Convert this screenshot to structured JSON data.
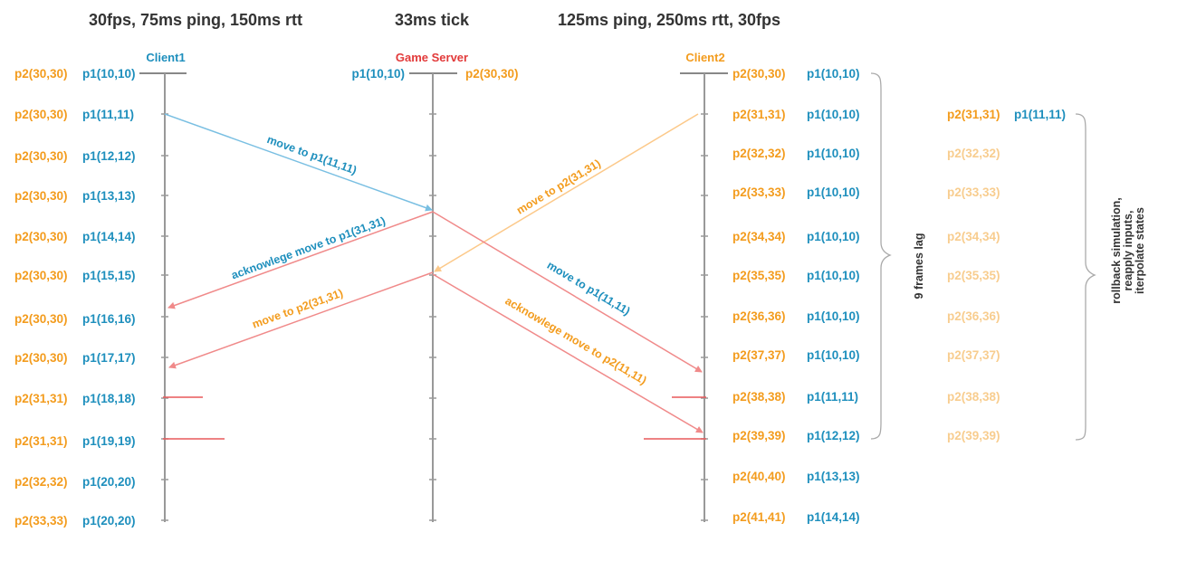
{
  "colors": {
    "p1": "#1e8fbd",
    "p2": "#f39c1e",
    "p2_faded": "#f8cd8f",
    "server": "#e23a3a",
    "red_line": "#e9585a",
    "msg_blue": "#79bfe2",
    "msg_red": "#f08a8a",
    "msg_orange": "#fcc98a",
    "axis": "#888888",
    "header": "#333333"
  },
  "headers": {
    "client1": "30fps, 75ms ping, 150ms rtt",
    "server": "33ms tick",
    "client2": "125ms ping, 250ms rtt, 30fps"
  },
  "lanes": {
    "client1": "Client1",
    "server": "Game Server",
    "client2": "Client2"
  },
  "client1_rows": [
    {
      "p2": "p2(30,30)",
      "p1": "p1(10,10)"
    },
    {
      "p2": "p2(30,30)",
      "p1": "p1(11,11)"
    },
    {
      "p2": "p2(30,30)",
      "p1": "p1(12,12)"
    },
    {
      "p2": "p2(30,30)",
      "p1": "p1(13,13)"
    },
    {
      "p2": "p2(30,30)",
      "p1": "p1(14,14)"
    },
    {
      "p2": "p2(30,30)",
      "p1": "p1(15,15)"
    },
    {
      "p2": "p2(30,30)",
      "p1": "p1(16,16)"
    },
    {
      "p2": "p2(30,30)",
      "p1": "p1(17,17)"
    },
    {
      "p2": "p2(31,31)",
      "p1": "p1(18,18)"
    },
    {
      "p2": "p2(31,31)",
      "p1": "p1(19,19)"
    },
    {
      "p2": "p2(32,32)",
      "p1": "p1(20,20)"
    },
    {
      "p2": "p2(33,33)",
      "p1": "p1(20,20)"
    }
  ],
  "server_row": {
    "p1": "p1(10,10)",
    "p2": "p2(30,30)"
  },
  "client2_rows": [
    {
      "p2": "p2(30,30)",
      "p1": "p1(10,10)"
    },
    {
      "p2": "p2(31,31)",
      "p1": "p1(10,10)"
    },
    {
      "p2": "p2(32,32)",
      "p1": "p1(10,10)"
    },
    {
      "p2": "p2(33,33)",
      "p1": "p1(10,10)"
    },
    {
      "p2": "p2(34,34)",
      "p1": "p1(10,10)"
    },
    {
      "p2": "p2(35,35)",
      "p1": "p1(10,10)"
    },
    {
      "p2": "p2(36,36)",
      "p1": "p1(10,10)"
    },
    {
      "p2": "p2(37,37)",
      "p1": "p1(10,10)"
    },
    {
      "p2": "p2(38,38)",
      "p1": "p1(11,11)"
    },
    {
      "p2": "p2(39,39)",
      "p1": "p1(12,12)"
    },
    {
      "p2": "p2(40,40)",
      "p1": "p1(13,13)"
    },
    {
      "p2": "p2(41,41)",
      "p1": "p1(14,14)"
    }
  ],
  "rollback_first": {
    "p2": "p2(31,31)",
    "p1": "p1(11,11)"
  },
  "rollback_rows": [
    "p2(32,32)",
    "p2(33,33)",
    "p2(34,34)",
    "p2(35,35)",
    "p2(36,36)",
    "p2(37,37)",
    "p2(38,38)",
    "p2(39,39)"
  ],
  "messages": {
    "c1_move": "move to p1(11,11)",
    "c1_ack": "acknowlege move to p1(31,31)",
    "c1_p2move": "move to p2(31,31)",
    "c2_move": "move to p2(31,31)",
    "c2_p1move": "move to p1(11,11)",
    "c2_ack": "acknowlege move to p2(11,11)"
  },
  "notes": {
    "lag": "9 frames lag",
    "rollback": [
      "rollback simulation,",
      "reapply inputs,",
      "iterpolate states"
    ]
  }
}
